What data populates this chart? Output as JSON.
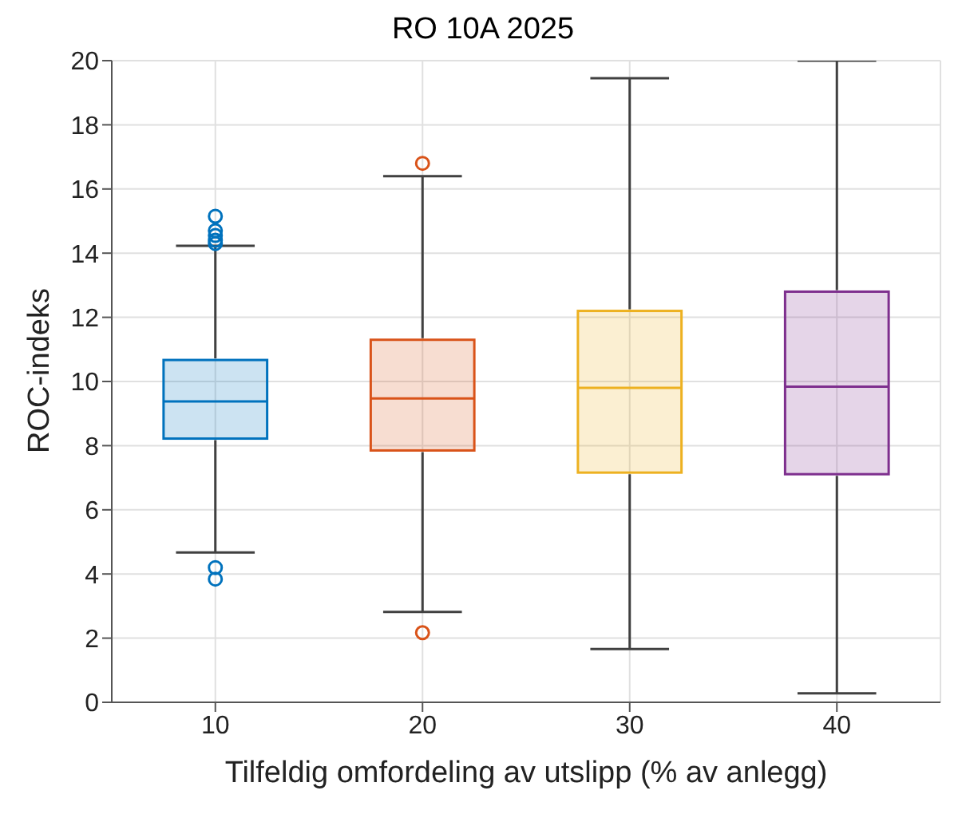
{
  "chart_data": {
    "type": "box",
    "title": "RO 10A 2025",
    "xlabel": "Tilfeldig omfordeling av utslipp (% av anlegg)",
    "ylabel": "ROC-indeks",
    "categories": [
      "10",
      "20",
      "30",
      "40"
    ],
    "colors": [
      "#0072bd",
      "#d95319",
      "#edb120",
      "#7e2f8e"
    ],
    "boxes": [
      {
        "low": 4.67,
        "q1": 8.22,
        "median": 9.38,
        "q3": 10.67,
        "high": 14.23,
        "outliers": [
          15.15,
          14.7,
          14.55,
          14.4,
          14.3,
          4.2,
          3.84
        ]
      },
      {
        "low": 2.82,
        "q1": 7.85,
        "median": 9.47,
        "q3": 11.3,
        "high": 16.4,
        "outliers": [
          16.8,
          2.17
        ]
      },
      {
        "low": 1.66,
        "q1": 7.16,
        "median": 9.8,
        "q3": 12.2,
        "high": 19.45
      },
      {
        "low": 0.28,
        "q1": 7.11,
        "median": 9.84,
        "q3": 12.8,
        "high": 20
      }
    ],
    "ylim": [
      0,
      20
    ],
    "yticks": [
      0,
      2,
      4,
      6,
      8,
      10,
      12,
      14,
      16,
      18,
      20
    ],
    "grid": true
  }
}
